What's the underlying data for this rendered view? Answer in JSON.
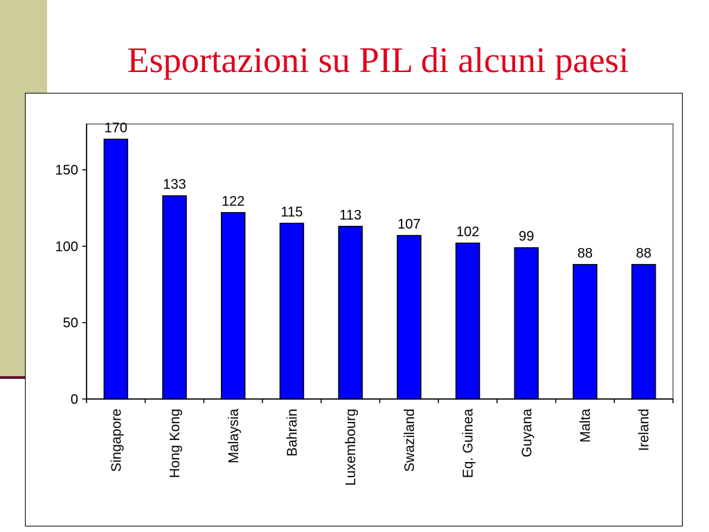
{
  "title": "Esportazioni su PIL di alcuni paesi",
  "colors": {
    "title": "#e0001b",
    "bar": "#0000ff",
    "side_band": "#cdcd9b"
  },
  "chart_data": {
    "type": "bar",
    "categories": [
      "Singapore",
      "Hong Kong",
      "Malaysia",
      "Bahrain",
      "Luxembourg",
      "Swaziland",
      "Eq. Guinea",
      "Guyana",
      "Malta",
      "Ireland"
    ],
    "values": [
      170,
      133,
      122,
      115,
      113,
      107,
      102,
      99,
      88,
      88
    ],
    "data_labels": [
      "170",
      "133",
      "122",
      "115",
      "113",
      "107",
      "102",
      "99",
      "88",
      "88"
    ],
    "yticks": [
      0,
      50,
      100,
      150
    ],
    "ylim": [
      0,
      180
    ],
    "xlabel": "",
    "ylabel": "",
    "grid": false,
    "legend": "none"
  }
}
